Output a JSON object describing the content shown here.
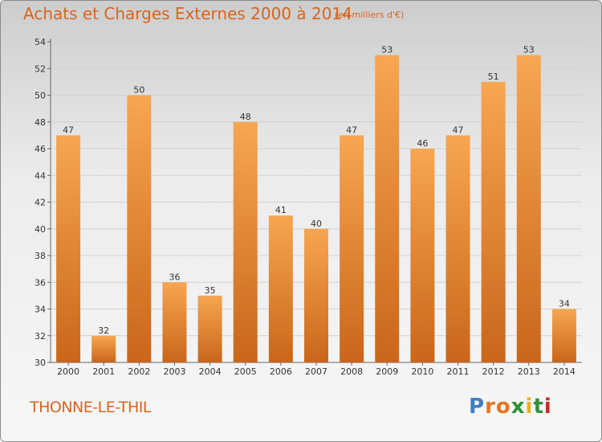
{
  "header": {
    "title": "Achats et Charges Externes 2000 à 2014",
    "unit": "(en milliers d'€)"
  },
  "footer": {
    "place": "THONNE-LE-THIL",
    "logo": "Proxiti"
  },
  "colors": {
    "bar_light": "#f7a651",
    "bar_dark": "#c9661b",
    "accent": "#d9641c"
  },
  "chart_data": {
    "type": "bar",
    "title": "Achats et Charges Externes 2000 à 2014",
    "categories": [
      "2000",
      "2001",
      "2002",
      "2003",
      "2004",
      "2005",
      "2006",
      "2007",
      "2008",
      "2009",
      "2010",
      "2011",
      "2012",
      "2013",
      "2014"
    ],
    "values": [
      47,
      32,
      50,
      36,
      35,
      48,
      41,
      40,
      47,
      53,
      46,
      47,
      51,
      53,
      34
    ],
    "ylim": [
      30,
      54
    ],
    "yticks": [
      30,
      32,
      34,
      36,
      38,
      40,
      42,
      44,
      46,
      48,
      50,
      52,
      54
    ],
    "grid": true,
    "data_labels": true
  }
}
